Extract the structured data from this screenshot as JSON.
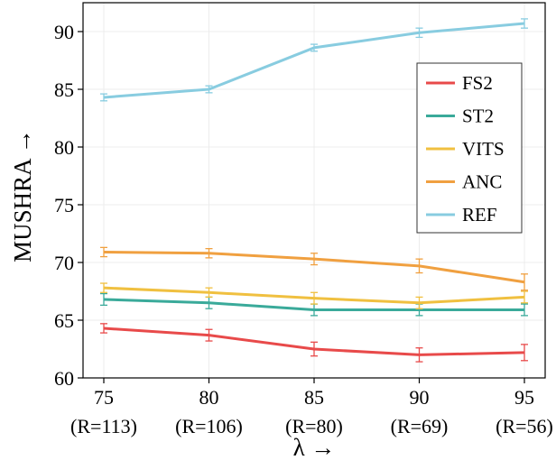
{
  "chart_data": {
    "type": "line",
    "title": "",
    "xlabel": "λ →",
    "ylabel": "MUSHRA →",
    "x": [
      75,
      80,
      85,
      90,
      95
    ],
    "x_tick_labels": [
      "75",
      "80",
      "85",
      "90",
      "95"
    ],
    "x_tick_sublabels": [
      "(R=113)",
      "(R=106)",
      "(R=80)",
      "(R=69)",
      "(R=56)"
    ],
    "xlim": [
      75,
      95
    ],
    "ylim": [
      60,
      92.5
    ],
    "y_ticks": [
      60,
      65,
      70,
      75,
      80,
      85,
      90
    ],
    "grid": true,
    "legend_position": "right",
    "series": [
      {
        "name": "FS2",
        "color": "#e84a4a",
        "values": [
          64.3,
          63.7,
          62.5,
          62.0,
          62.2
        ],
        "errors": [
          0.4,
          0.5,
          0.6,
          0.6,
          0.7
        ]
      },
      {
        "name": "ST2",
        "color": "#3aaa9a",
        "values": [
          66.8,
          66.5,
          65.9,
          65.9,
          65.9
        ],
        "errors": [
          0.5,
          0.5,
          0.5,
          0.5,
          0.5
        ]
      },
      {
        "name": "VITS",
        "color": "#f0c040",
        "values": [
          67.8,
          67.4,
          66.9,
          66.5,
          67.0
        ],
        "errors": [
          0.4,
          0.4,
          0.5,
          0.5,
          0.5
        ]
      },
      {
        "name": "ANC",
        "color": "#f0a040",
        "values": [
          70.9,
          70.8,
          70.3,
          69.7,
          68.3
        ],
        "errors": [
          0.4,
          0.4,
          0.5,
          0.6,
          0.7
        ]
      },
      {
        "name": "REF",
        "color": "#88cce0",
        "values": [
          84.3,
          85.0,
          88.6,
          89.9,
          90.7
        ],
        "errors": [
          0.3,
          0.3,
          0.3,
          0.4,
          0.4
        ]
      }
    ]
  }
}
